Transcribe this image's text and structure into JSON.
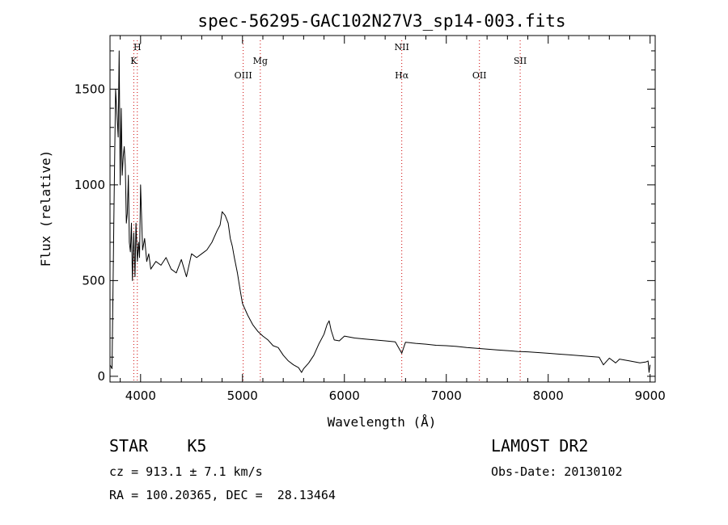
{
  "chart_data": {
    "type": "line",
    "title": "spec-56295-GAC102N27V3_sp14-003.fits",
    "xlabel": "Wavelength (Å)",
    "ylabel": "Flux (relative)",
    "xlim": [
      3700,
      9050
    ],
    "ylim": [
      -30,
      1780
    ],
    "xticks": [
      4000,
      5000,
      6000,
      7000,
      8000,
      9000
    ],
    "yticks": [
      0,
      500,
      1000,
      1500
    ],
    "grid": false,
    "series": [
      {
        "x": [
          3700,
          3720,
          3740,
          3755,
          3770,
          3780,
          3790,
          3800,
          3810,
          3820,
          3830,
          3840,
          3850,
          3860,
          3870,
          3880,
          3890,
          3900,
          3910,
          3920,
          3933,
          3945,
          3955,
          3968,
          3980,
          3990,
          4000,
          4020,
          4040,
          4060,
          4080,
          4100,
          4150,
          4200,
          4250,
          4300,
          4350,
          4400,
          4450,
          4500,
          4550,
          4600,
          4650,
          4700,
          4750,
          4780,
          4800,
          4830,
          4860,
          4880,
          4900,
          4920,
          4950,
          4980,
          5000,
          5050,
          5100,
          5150,
          5200,
          5250,
          5300,
          5350,
          5400,
          5450,
          5500,
          5550,
          5580,
          5600,
          5650,
          5700,
          5750,
          5800,
          5830,
          5850,
          5870,
          5900,
          5950,
          6000,
          6100,
          6200,
          6300,
          6400,
          6500,
          6563,
          6600,
          6700,
          6800,
          6900,
          7000,
          7100,
          7200,
          7300,
          7400,
          7500,
          7600,
          7700,
          7800,
          7900,
          8000,
          8100,
          8200,
          8300,
          8400,
          8500,
          8542,
          8600,
          8662,
          8700,
          8800,
          8900,
          8960,
          8980,
          8990,
          9000
        ],
        "values": [
          60,
          40,
          900,
          1500,
          1350,
          1250,
          1700,
          1000,
          1400,
          1050,
          1150,
          1200,
          1100,
          800,
          850,
          1050,
          700,
          650,
          800,
          500,
          750,
          520,
          800,
          600,
          700,
          620,
          1000,
          660,
          720,
          600,
          640,
          560,
          600,
          580,
          620,
          560,
          540,
          610,
          520,
          640,
          620,
          640,
          660,
          700,
          760,
          790,
          860,
          840,
          800,
          720,
          680,
          620,
          540,
          440,
          380,
          320,
          270,
          235,
          210,
          190,
          160,
          150,
          110,
          80,
          60,
          45,
          20,
          40,
          70,
          110,
          170,
          220,
          270,
          290,
          240,
          190,
          185,
          210,
          200,
          195,
          190,
          185,
          180,
          120,
          178,
          172,
          168,
          162,
          160,
          156,
          150,
          146,
          142,
          138,
          134,
          130,
          128,
          124,
          120,
          116,
          112,
          108,
          104,
          100,
          60,
          95,
          70,
          90,
          80,
          70,
          75,
          80,
          20,
          60
        ]
      }
    ],
    "annotations": [
      {
        "label": "H",
        "x": 3968,
        "row": 1
      },
      {
        "label": "K",
        "x": 3933,
        "row": 2
      },
      {
        "label": "OIII",
        "x": 5007,
        "row": 3
      },
      {
        "label": "Mg",
        "x": 5175,
        "row": 2
      },
      {
        "label": "NII",
        "x": 6563,
        "row": 1
      },
      {
        "label": "Hα",
        "x": 6563,
        "row": 3
      },
      {
        "label": "OII",
        "x": 7325,
        "row": 3
      },
      {
        "label": "SII",
        "x": 7725,
        "row": 2
      }
    ]
  },
  "info": {
    "object": "STAR    K5",
    "survey": "LAMOST DR2",
    "cz": "cz = 913.1 ± 7.1 km/s",
    "obs_date": "Obs-Date: 20130102",
    "radec": "RA = 100.20365, DEC =  28.13464"
  },
  "colors": {
    "line": "#000000",
    "marker": "#cc0000",
    "axis": "#000000"
  }
}
